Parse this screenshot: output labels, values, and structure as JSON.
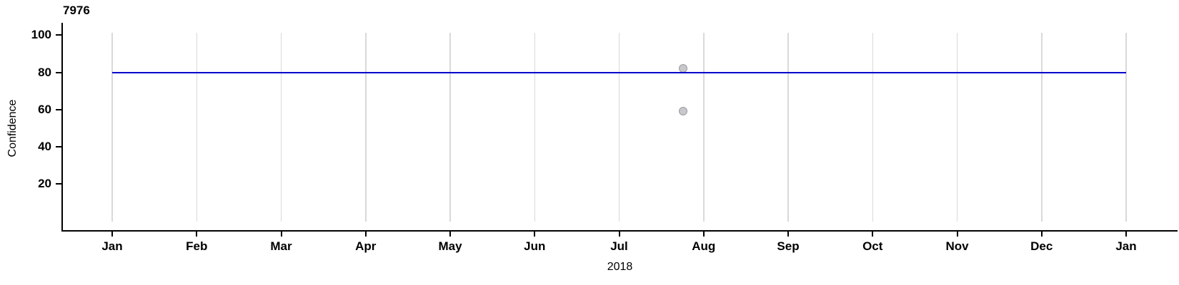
{
  "chart_data": {
    "type": "scatter",
    "title": "7976",
    "xlabel": "2018",
    "ylabel": "Confidence",
    "x_tick_labels": [
      "Jan",
      "Feb",
      "Mar",
      "Apr",
      "May",
      "Jun",
      "Jul",
      "Aug",
      "Sep",
      "Oct",
      "Nov",
      "Dec",
      "Jan"
    ],
    "x_axis_note": "monthly ticks from Jan 2018 through Jan 2019",
    "y_ticks": [
      20,
      40,
      60,
      80,
      100
    ],
    "ylim": [
      0,
      101
    ],
    "grid": "vertical-only, one light gray gridline per month",
    "legend": "none",
    "series": [
      {
        "name": "reference-line",
        "type": "line",
        "color": "#0000CC",
        "y": 80,
        "x_start_month_offset": 0,
        "x_end_month_offset": 12
      },
      {
        "name": "observations",
        "type": "scatter",
        "fill": "#C8C8CC",
        "stroke": "#9A9AA0",
        "points": [
          {
            "x_month_offset": 6.76,
            "y": 82
          },
          {
            "x_month_offset": 6.76,
            "y": 59
          }
        ]
      }
    ],
    "style": {
      "axis_color": "#000000",
      "grid_color": "#D9D9D9",
      "tick_label_weight": "bold",
      "axis_title_weight": "normal"
    }
  }
}
